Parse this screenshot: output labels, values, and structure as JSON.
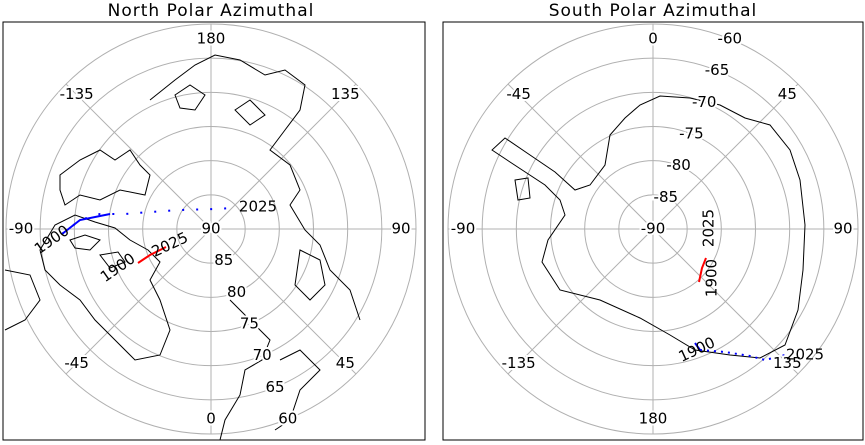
{
  "panels": [
    {
      "title": "North Polar Azimuthal",
      "longitude_labels": [
        180,
        -135,
        135,
        -90,
        90,
        -45,
        45,
        0
      ],
      "latitude_labels": [
        90,
        85,
        80,
        75,
        70,
        65,
        60
      ],
      "tracks": [
        {
          "color": "#0000ff",
          "start_label": "1900",
          "end_label": "2025"
        },
        {
          "color": "#ff0000",
          "start_label": "1900",
          "end_label": "2025"
        }
      ]
    },
    {
      "title": "South Polar Azimuthal",
      "longitude_labels": [
        0,
        -45,
        45,
        -90,
        90,
        -135,
        135,
        180
      ],
      "latitude_labels": [
        -90,
        -85,
        -80,
        -75,
        -70,
        -65,
        -60
      ],
      "tracks": [
        {
          "color": "#ff0000",
          "start_label": "1900",
          "end_label": "2025"
        },
        {
          "color": "#0000ff",
          "start_label": "1900",
          "end_label": "2025"
        }
      ]
    }
  ]
}
